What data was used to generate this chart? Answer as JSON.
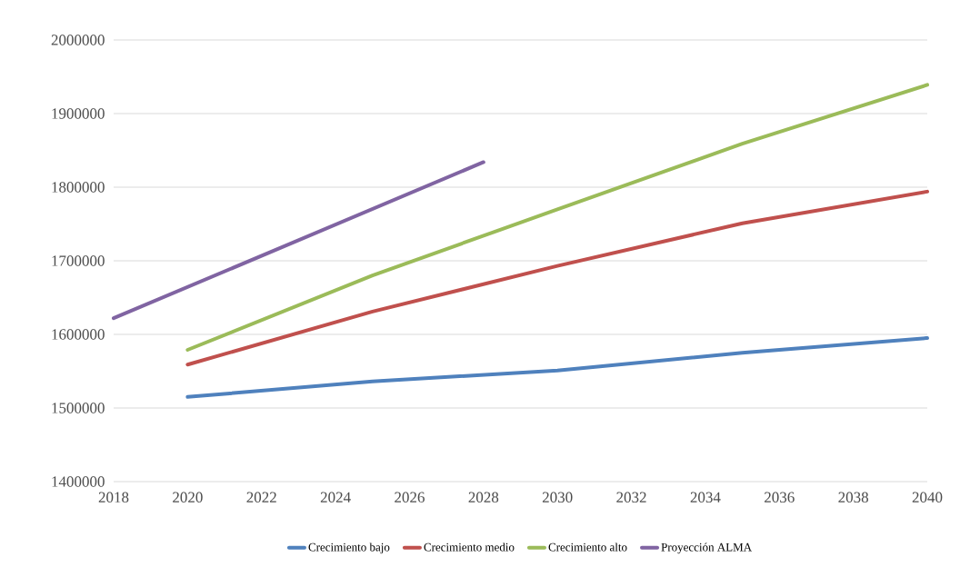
{
  "chart_data": {
    "type": "line",
    "xlim": [
      2018,
      2040
    ],
    "xticks": [
      2018,
      2020,
      2022,
      2024,
      2026,
      2028,
      2030,
      2032,
      2034,
      2036,
      2038,
      2040
    ],
    "ylim": [
      1400000,
      2000000
    ],
    "yticks": [
      1400000,
      1500000,
      1600000,
      1700000,
      1800000,
      1900000,
      2000000
    ],
    "grid": "y",
    "legend": "bottom",
    "marker": "none",
    "line_style": "solid",
    "series": [
      {
        "name": "Crecimiento bajo",
        "color": "#4f81bd",
        "x": [
          2020,
          2025,
          2030,
          2035,
          2040
        ],
        "values": [
          1515000,
          1536000,
          1551000,
          1575000,
          1595000
        ]
      },
      {
        "name": "Crecimiento medio",
        "color": "#c0504d",
        "x": [
          2020,
          2025,
          2030,
          2035,
          2040
        ],
        "values": [
          1559000,
          1631000,
          1693000,
          1751000,
          1794000
        ]
      },
      {
        "name": "Crecimiento alto",
        "color": "#9bbb59",
        "x": [
          2020,
          2025,
          2030,
          2035,
          2040
        ],
        "values": [
          1579000,
          1680000,
          1770000,
          1859000,
          1939000
        ]
      },
      {
        "name": "Proyección ALMA",
        "color": "#8064a2",
        "x": [
          2018,
          2028
        ],
        "values": [
          1622000,
          1834000
        ]
      }
    ]
  }
}
